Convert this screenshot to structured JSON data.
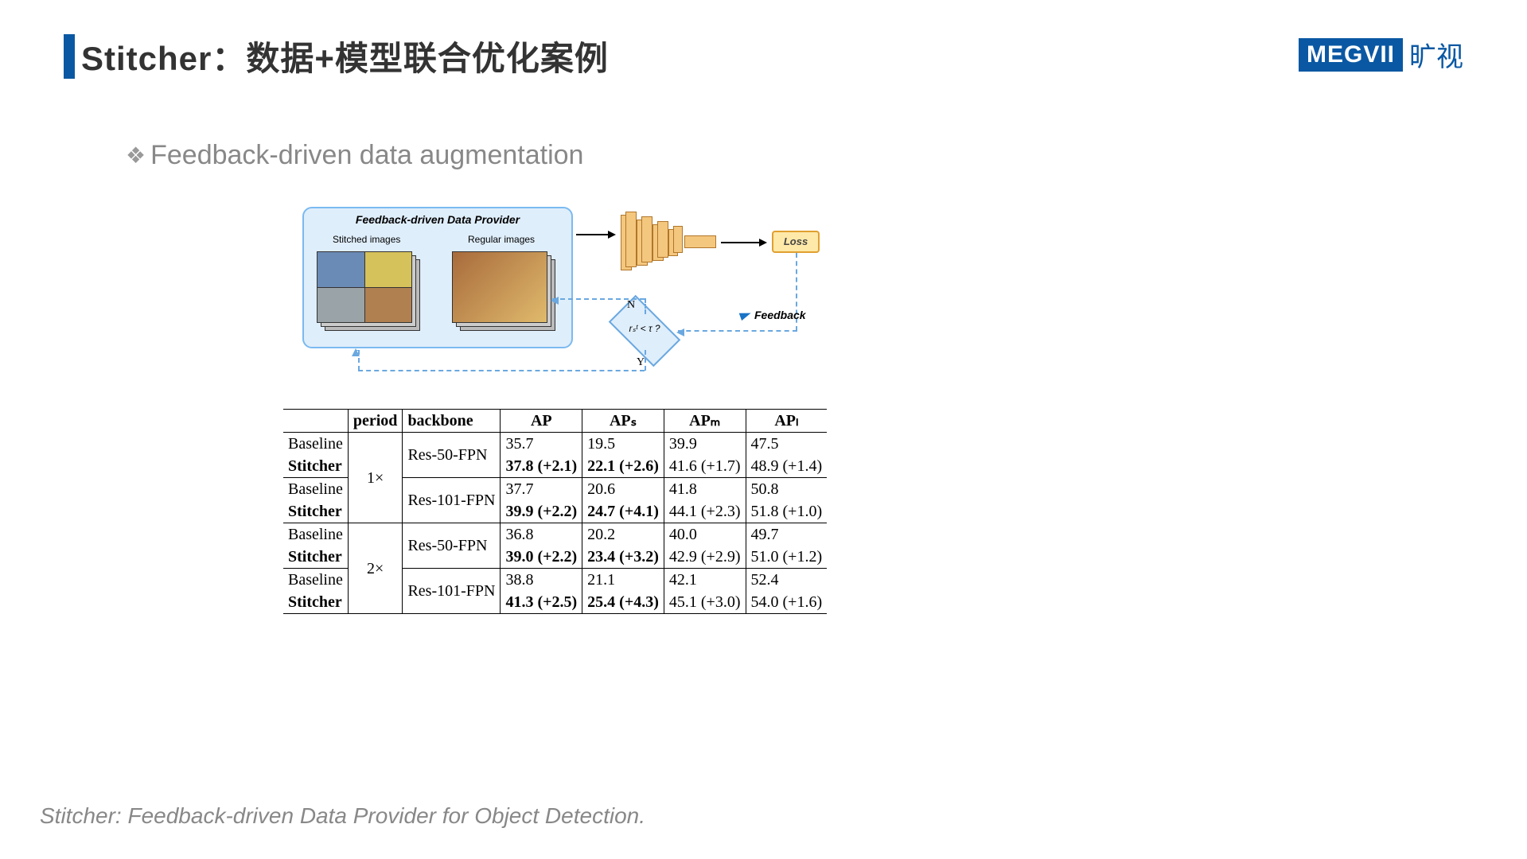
{
  "title": "Stitcher：数据+模型联合优化案例",
  "logo_text": "MEGVII",
  "logo_cn": "旷视",
  "bullet": "Feedback-driven data augmentation",
  "diagram": {
    "provider_title": "Feedback-driven Data Provider",
    "stitched_label": "Stitched images",
    "regular_label": "Regular images",
    "loss_label": "Loss",
    "decision_label": "rₛᵗ < τ ?",
    "branch_n": "N",
    "branch_y": "Y",
    "feedback_label": "Feedback",
    "colors": {
      "provider_bg": "#dfeefb",
      "provider_border": "#7bbaf0",
      "cnn_fill": "#f4c77e",
      "cnn_border": "#b0762b",
      "loss_bg": "#ffe9a8",
      "loss_border": "#e0a030",
      "dashed": "#6aa8e0"
    }
  },
  "table": {
    "headers": [
      "",
      "period",
      "backbone",
      "AP",
      "APₛ",
      "APₘ",
      "APₗ"
    ],
    "groups": [
      {
        "period": "1×",
        "rows": [
          {
            "method": "Baseline",
            "backbone": "Res-50-FPN",
            "ap": "35.7",
            "aps": "19.5",
            "apm": "39.9",
            "apl": "47.5",
            "bold": false
          },
          {
            "method": "Stitcher",
            "backbone": "",
            "ap": "37.8 (+2.1)",
            "aps": "22.1 (+2.6)",
            "apm": "41.6 (+1.7)",
            "apl": "48.9 (+1.4)",
            "bold": true,
            "bold_cols": [
              "ap",
              "aps"
            ]
          },
          {
            "method": "Baseline",
            "backbone": "Res-101-FPN",
            "ap": "37.7",
            "aps": "20.6",
            "apm": "41.8",
            "apl": "50.8",
            "bold": false
          },
          {
            "method": "Stitcher",
            "backbone": "",
            "ap": "39.9 (+2.2)",
            "aps": "24.7 (+4.1)",
            "apm": "44.1 (+2.3)",
            "apl": "51.8 (+1.0)",
            "bold": true,
            "bold_cols": [
              "ap",
              "aps"
            ]
          }
        ]
      },
      {
        "period": "2×",
        "rows": [
          {
            "method": "Baseline",
            "backbone": "Res-50-FPN",
            "ap": "36.8",
            "aps": "20.2",
            "apm": "40.0",
            "apl": "49.7",
            "bold": false
          },
          {
            "method": "Stitcher",
            "backbone": "",
            "ap": "39.0 (+2.2)",
            "aps": "23.4 (+3.2)",
            "apm": "42.9 (+2.9)",
            "apl": "51.0 (+1.2)",
            "bold": true,
            "bold_cols": [
              "ap",
              "aps"
            ]
          },
          {
            "method": "Baseline",
            "backbone": "Res-101-FPN",
            "ap": "38.8",
            "aps": "21.1",
            "apm": "42.1",
            "apl": "52.4",
            "bold": false
          },
          {
            "method": "Stitcher",
            "backbone": "",
            "ap": "41.3 (+2.5)",
            "aps": "25.4 (+4.3)",
            "apm": "45.1 (+3.0)",
            "apl": "54.0 (+1.6)",
            "bold": true,
            "bold_cols": [
              "ap",
              "aps"
            ]
          }
        ]
      }
    ]
  },
  "footer": "Stitcher: Feedback-driven Data Provider for Object Detection."
}
